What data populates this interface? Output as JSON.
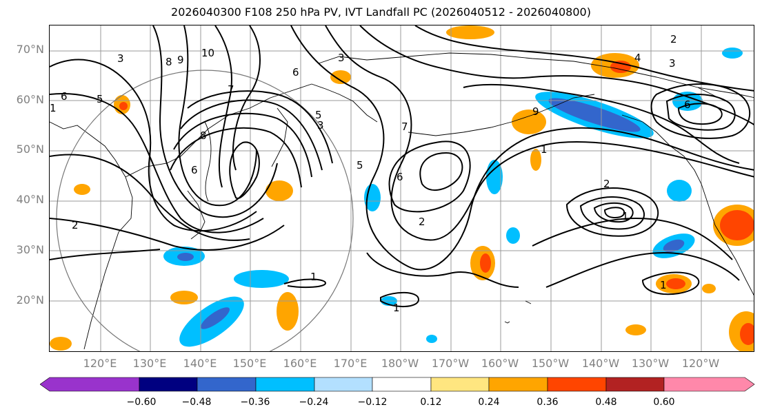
{
  "title": "2026040300 F108 250 hPa PV, IVT Landfall PC (2026040512 - 2026040800)",
  "lat_labels": [
    "70°N",
    "60°N",
    "50°N",
    "40°N",
    "30°N",
    "20°N"
  ],
  "lon_labels": [
    "120°E",
    "130°E",
    "140°E",
    "150°E",
    "160°E",
    "170°E",
    "180°W",
    "170°W",
    "160°W",
    "150°W",
    "140°W",
    "130°W",
    "120°W"
  ],
  "colorbar": {
    "ticks": [
      "−0.60",
      "−0.48",
      "−0.36",
      "−0.24",
      "−0.12",
      "0.12",
      "0.24",
      "0.36",
      "0.48",
      "0.60"
    ],
    "colors": [
      "#9933cc",
      "#000080",
      "#3366cc",
      "#00bfff",
      "#b3e0ff",
      "#ffffff",
      "#ffe680",
      "#ffa500",
      "#ff4500",
      "#b22222",
      "#ff88aa"
    ]
  },
  "contour_labels": [
    "3",
    "8",
    "9",
    "10",
    "6",
    "1",
    "5",
    "7",
    "6",
    "6",
    "3",
    "5",
    "7",
    "6",
    "2",
    "8",
    "1",
    "2",
    "1",
    "5",
    "3",
    "4",
    "1",
    "2",
    "1",
    "2",
    "3",
    "6",
    "1",
    "9"
  ]
}
